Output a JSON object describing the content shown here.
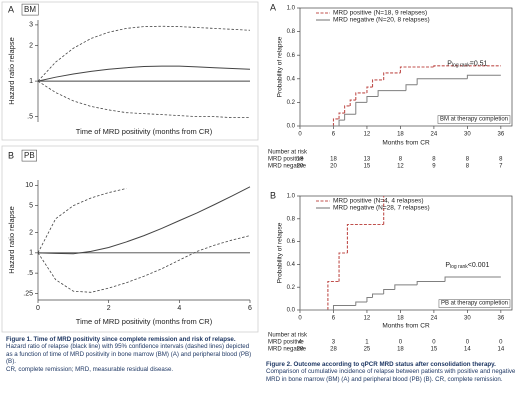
{
  "chart_data": [
    {
      "type": "line",
      "panel": "A",
      "label": "BM",
      "ylabel": "Hazard ratio relapse",
      "xlabel": "Time of MRD positivity (months from CR)",
      "log_y": true,
      "xlim": [
        0,
        6
      ],
      "ylim": [
        0.45,
        3.3
      ],
      "yticks": [
        {
          "value": 0.5,
          "label": ".5"
        },
        1,
        2,
        3
      ],
      "reference_line": 1,
      "x": [
        0,
        0.5,
        1,
        1.5,
        2,
        2.5,
        3,
        3.5,
        4,
        4.5,
        5,
        5.5,
        6
      ],
      "series": [
        {
          "color": "#444444",
          "dash": false,
          "values": [
            1,
            1.08,
            1.15,
            1.21,
            1.26,
            1.3,
            1.33,
            1.34,
            1.34,
            1.32,
            1.3,
            1.28,
            1.26
          ]
        },
        {
          "color": "#444444",
          "dash": true,
          "values": [
            1,
            1.45,
            1.9,
            2.3,
            2.6,
            2.8,
            2.9,
            2.92,
            2.9,
            2.85,
            2.8,
            2.75,
            2.7
          ]
        },
        {
          "color": "#444444",
          "dash": true,
          "values": [
            1,
            0.8,
            0.68,
            0.61,
            0.57,
            0.54,
            0.53,
            0.52,
            0.51,
            0.5,
            0.5,
            0.49,
            0.49
          ]
        }
      ]
    },
    {
      "type": "line",
      "panel": "B",
      "label": "PB",
      "ylabel": "Hazard ratio relapse",
      "xlabel": "Time of MRD positivity (months from CR)",
      "log_y": true,
      "xlim": [
        0,
        6
      ],
      "ylim": [
        0.2,
        12
      ],
      "xticks": [
        0,
        2,
        4,
        6
      ],
      "yticks": [
        {
          "value": 0.25,
          "label": ".25"
        },
        {
          "value": 0.5,
          "label": ".5"
        },
        1,
        2,
        5,
        10
      ],
      "reference_line": 1,
      "x": [
        0,
        0.5,
        1,
        1.5,
        2,
        2.5,
        3,
        3.5,
        4,
        4.5,
        5,
        5.5,
        6
      ],
      "series": [
        {
          "color": "#444444",
          "dash": false,
          "values": [
            1,
            0.98,
            0.97,
            1.05,
            1.2,
            1.45,
            1.8,
            2.3,
            3,
            3.9,
            5.2,
            7,
            9.5
          ]
        },
        {
          "color": "#444444",
          "dash": true,
          "values": [
            1,
            3.2,
            5,
            6.5,
            7.8,
            9,
            null,
            null,
            null,
            null,
            null,
            null,
            null
          ]
        },
        {
          "color": "#444444",
          "dash": true,
          "values": [
            1,
            0.4,
            0.27,
            0.26,
            0.3,
            0.36,
            0.45,
            0.58,
            0.78,
            1.05,
            1.3,
            1.55,
            1.8
          ]
        }
      ]
    },
    {
      "type": "step",
      "panel": "A",
      "ylabel": "Probability of relapse",
      "xlabel": "Months from CR",
      "xlim": [
        0,
        38
      ],
      "ylim": [
        0,
        1
      ],
      "xticks": [
        0,
        6,
        12,
        18,
        24,
        30,
        36
      ],
      "yticks": [
        {
          "value": 0,
          "label": "0.0"
        },
        {
          "value": 0.2,
          "label": "0.2"
        },
        {
          "value": 0.4,
          "label": "0.4"
        },
        {
          "value": 0.6,
          "label": "0.6"
        },
        {
          "value": 0.8,
          "label": "0.8"
        },
        {
          "value": 1,
          "label": "1.0"
        }
      ],
      "series": [
        {
          "name": "MRD positive (N=18, 9 relapses)",
          "color": "#c0504d",
          "dash": true,
          "x": [
            0,
            6,
            7,
            8,
            9,
            10,
            12,
            13,
            15,
            18,
            24,
            36
          ],
          "values": [
            0,
            0.06,
            0.11,
            0.17,
            0.22,
            0.28,
            0.33,
            0.39,
            0.45,
            0.5,
            0.51,
            0.51
          ]
        },
        {
          "name": "MRD negative (N=20, 8 relapses)",
          "color": "#7f7f7f",
          "dash": false,
          "x": [
            0,
            7,
            8,
            10,
            12,
            14,
            19,
            21,
            30,
            36
          ],
          "values": [
            0,
            0.05,
            0.1,
            0.2,
            0.25,
            0.3,
            0.35,
            0.4,
            0.43,
            0.43
          ]
        }
      ],
      "p_value": {
        "p": "P",
        "sub": "log rank",
        "text": "=0.51"
      },
      "note": "BM at therapy completion",
      "risk_table": {
        "title": "Number at risk",
        "rows": [
          {
            "name": "MRD positive",
            "values": [
              18,
              18,
              13,
              8,
              8,
              8,
              8
            ]
          },
          {
            "name": "MRD negative",
            "values": [
              20,
              20,
              15,
              12,
              9,
              8,
              7
            ]
          }
        ]
      }
    },
    {
      "type": "step",
      "panel": "B",
      "ylabel": "Probability of relapse",
      "xlabel": "Months from CR",
      "xlim": [
        0,
        38
      ],
      "ylim": [
        0,
        1
      ],
      "xticks": [
        0,
        6,
        12,
        18,
        24,
        30,
        36
      ],
      "yticks": [
        {
          "value": 0,
          "label": "0.0"
        },
        {
          "value": 0.2,
          "label": "0.2"
        },
        {
          "value": 0.4,
          "label": "0.4"
        },
        {
          "value": 0.6,
          "label": "0.6"
        },
        {
          "value": 0.8,
          "label": "0.8"
        },
        {
          "value": 1,
          "label": "1.0"
        }
      ],
      "series": [
        {
          "name": "MRD positive (N=4, 4 relapses)",
          "color": "#c0504d",
          "dash": true,
          "x": [
            0,
            5,
            7,
            8.5,
            15
          ],
          "values": [
            0,
            0.25,
            0.5,
            0.75,
            1
          ]
        },
        {
          "name": "MRD negative (N=28, 7 relapses)",
          "color": "#7f7f7f",
          "dash": false,
          "x": [
            0,
            6,
            10,
            12,
            13,
            15,
            17,
            21,
            26,
            36
          ],
          "values": [
            0,
            0.04,
            0.07,
            0.11,
            0.14,
            0.18,
            0.22,
            0.25,
            0.29,
            0.29
          ]
        }
      ],
      "p_value": {
        "p": "P",
        "sub": "log rank",
        "text": "<0.001"
      },
      "note": "PB at therapy completion",
      "risk_table": {
        "title": "Number at risk",
        "rows": [
          {
            "name": "MRD positive",
            "values": [
              4,
              3,
              1,
              0,
              0,
              0,
              0
            ]
          },
          {
            "name": "MRD negative",
            "values": [
              28,
              28,
              25,
              18,
              15,
              14,
              14
            ]
          }
        ]
      }
    }
  ],
  "captions": [
    {
      "title": "Figure 1. Time of MRD positivity since complete remission and risk of relapse.",
      "text": [
        "Hazard ratio of relapse (black line) with 95% confidence intervals (dashed lines) depicted as a function of time of MRD positivity in bone marrow (BM) (A) and peripheral blood (PB) (B).",
        "CR, complete remission; MRD, measurable residual disease."
      ]
    },
    {
      "title": "Figure 2. Outcome according to qPCR MRD status after consolidation therapy.",
      "text": [
        "Comparison of cumulative incidence of relapse between patients with positive and negative MRD in bone marrow (BM) (A) and peripheral blood (PB) (B). CR, complete remission."
      ]
    }
  ]
}
